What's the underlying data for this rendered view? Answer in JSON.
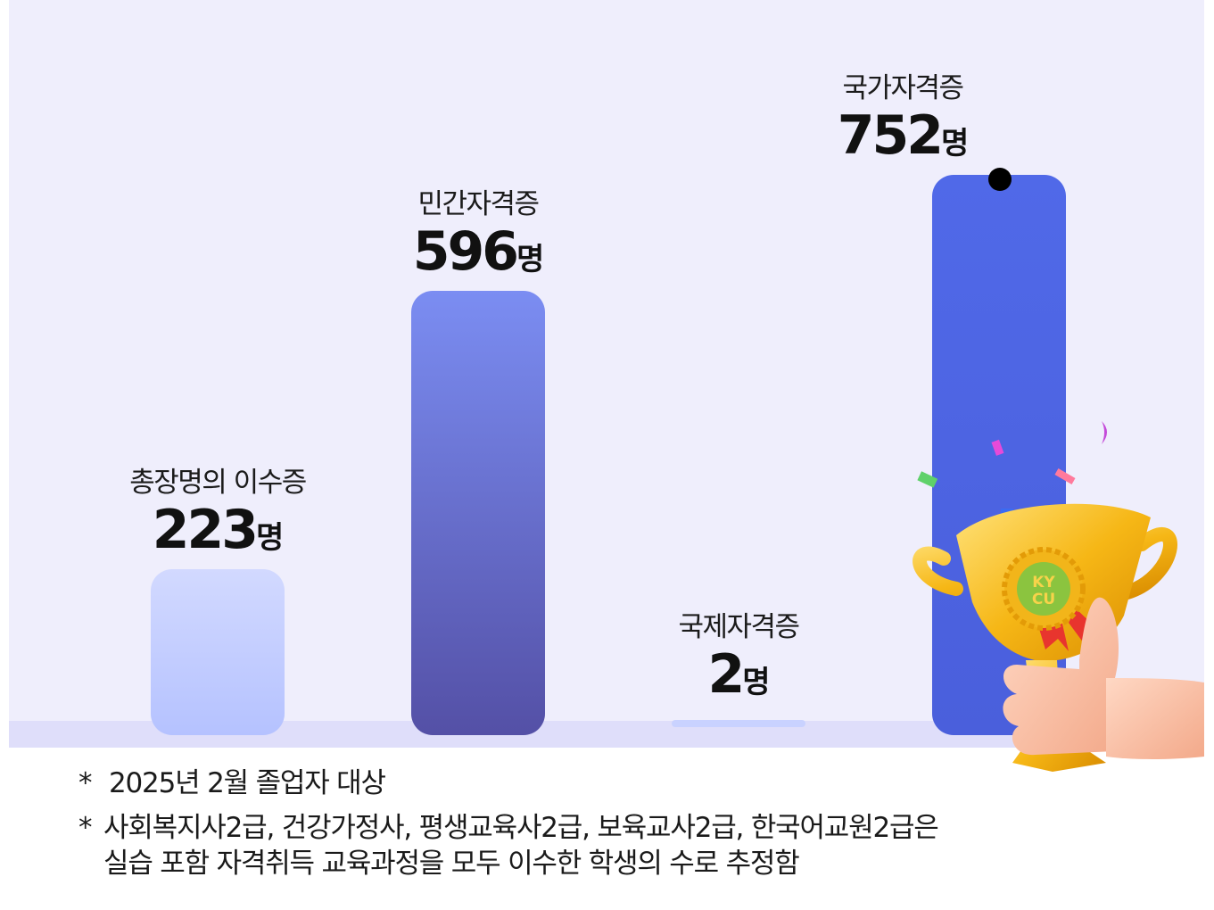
{
  "colors": {
    "panel_bg": "#efeefc",
    "baseline": "#dfdefa",
    "bar_gradients": [
      [
        "#d2d9ff",
        "#b5c2ff"
      ],
      [
        "#7b8df2",
        "#5450a6"
      ],
      [
        "#c9d2ff",
        "#c9d2ff"
      ],
      [
        "#5069e8",
        "#4a5fdc"
      ]
    ]
  },
  "chart_data": {
    "type": "bar",
    "categories": [
      "총장명의 이수증",
      "민간자격증",
      "국제자격증",
      "국가자격증"
    ],
    "values": [
      223,
      596,
      2,
      752
    ],
    "unit": "명",
    "ylim": [
      0,
      752
    ],
    "grid": false,
    "legend": "none"
  },
  "value_labels": [
    {
      "num": "223",
      "unit": "명"
    },
    {
      "num": "596",
      "unit": "명"
    },
    {
      "num": "2",
      "unit": "명"
    },
    {
      "num": "752",
      "unit": "명"
    }
  ],
  "trophy": {
    "badge_text_top": "KY",
    "badge_text_bottom": "CU"
  },
  "notes": [
    {
      "star": "*",
      "text": "2025년 2월 졸업자 대상"
    },
    {
      "star": "*",
      "text": "사회복지사2급, 건강가정사, 평생교육사2급, 보육교사2급, 한국어교원2급은\n실습 포함 자격취득 교육과정을 모두 이수한 학생의 수로 추정함"
    }
  ]
}
